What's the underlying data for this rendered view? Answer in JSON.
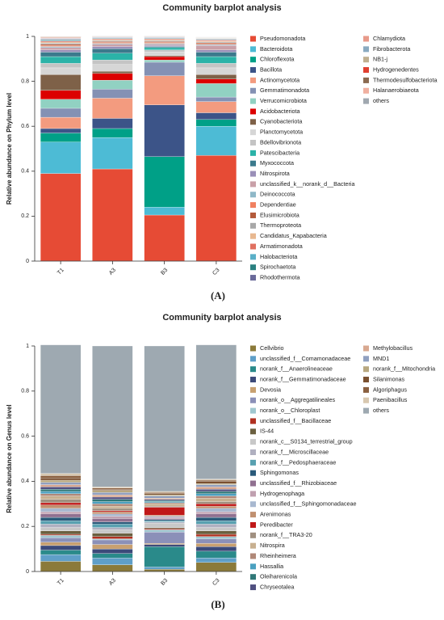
{
  "chart_data": [
    {
      "type": "bar",
      "stacked": true,
      "title": "Community barplot analysis",
      "y_label": "Relative abundance on Phylum level",
      "panel_label": "(A)",
      "categories": [
        "T1",
        "A3",
        "B3",
        "C3"
      ],
      "ylim": [
        0,
        1
      ],
      "yticks": [
        0,
        0.2,
        0.4,
        0.6,
        0.8,
        1
      ],
      "series": [
        {
          "name": "Pseudomonadota",
          "color": "#e64b35",
          "values": [
            0.39,
            0.41,
            0.205,
            0.47
          ]
        },
        {
          "name": "Bacteroidota",
          "color": "#4dbbd5",
          "values": [
            0.14,
            0.14,
            0.035,
            0.13
          ]
        },
        {
          "name": "Chloroflexota",
          "color": "#00a087",
          "values": [
            0.04,
            0.04,
            0.225,
            0.03
          ]
        },
        {
          "name": "Bacillota",
          "color": "#3c5488",
          "values": [
            0.02,
            0.045,
            0.23,
            0.03
          ]
        },
        {
          "name": "Actinomycetota",
          "color": "#f39b7f",
          "values": [
            0.05,
            0.09,
            0.13,
            0.05
          ]
        },
        {
          "name": "Gemmatimonadota",
          "color": "#8491b4",
          "values": [
            0.04,
            0.04,
            0.06,
            0.02
          ]
        },
        {
          "name": "Verrucomicrobiota",
          "color": "#91d1c2",
          "values": [
            0.04,
            0.04,
            0.01,
            0.06
          ]
        },
        {
          "name": "Acidobacteriota",
          "color": "#dc0000",
          "values": [
            0.04,
            0.03,
            0.015,
            0.02
          ]
        },
        {
          "name": "Cyanobacteriota",
          "color": "#7e6148",
          "values": [
            0.07,
            0.01,
            0.005,
            0.02
          ]
        },
        {
          "name": "Planctomycetota",
          "color": "#d6d6d6",
          "values": [
            0.03,
            0.03,
            0.015,
            0.03
          ]
        },
        {
          "name": "Bdellovibrionota",
          "color": "#c4c4c4",
          "values": [
            0.02,
            0.02,
            0.01,
            0.02
          ]
        },
        {
          "name": "Patescibacteria",
          "color": "#2bb3a8",
          "values": [
            0.03,
            0.03,
            0.01,
            0.03
          ]
        },
        {
          "name": "Myxococcota",
          "color": "#3b7a8c",
          "values": [
            0.02,
            0.02,
            0.005,
            0.02
          ]
        },
        {
          "name": "Nitrospirota",
          "color": "#9a8fb8",
          "values": [
            0.01,
            0.01,
            0.005,
            0.01
          ]
        },
        {
          "name": "unclassified_k__norank_d__Bacteria",
          "color": "#c9a0a8",
          "values": [
            0.01,
            0.01,
            0.005,
            0.02
          ]
        },
        {
          "name": "Deinococcota",
          "color": "#8fb8c8",
          "values": [
            0.005,
            0.004,
            0.004,
            0.004
          ]
        },
        {
          "name": "Dependentiae",
          "color": "#f08060",
          "values": [
            0.005,
            0.004,
            0.004,
            0.004
          ]
        },
        {
          "name": "Elusimicrobiota",
          "color": "#b35a3a",
          "values": [
            0.005,
            0.004,
            0.004,
            0.004
          ]
        },
        {
          "name": "Thermoproteota",
          "color": "#a8a8a8",
          "values": [
            0.005,
            0.004,
            0.004,
            0.004
          ]
        },
        {
          "name": "Candidatus_Kapabacteria",
          "color": "#e8b890",
          "values": [
            0.005,
            0.004,
            0.004,
            0.004
          ]
        },
        {
          "name": "Armatimonadota",
          "color": "#e07060",
          "values": [
            0.005,
            0.004,
            0.004,
            0.004
          ]
        },
        {
          "name": "Halobacteriota",
          "color": "#5ab0c8",
          "values": [
            0.003,
            0.002,
            0.002,
            0.002
          ]
        },
        {
          "name": "Spirochaetota",
          "color": "#2a8080",
          "values": [
            0.003,
            0.002,
            0.002,
            0.002
          ]
        },
        {
          "name": "Rhodothermota",
          "color": "#6a6a9a",
          "values": [
            0.003,
            0.002,
            0.002,
            0.002
          ]
        },
        {
          "name": "Chlamydiota",
          "color": "#e89a8a",
          "values": [
            0.002,
            0.001,
            0.001,
            0.001
          ]
        },
        {
          "name": "Fibrobacterota",
          "color": "#8aaac0",
          "values": [
            0.002,
            0.001,
            0.001,
            0.001
          ]
        },
        {
          "name": "NB1-j",
          "color": "#c0b090",
          "values": [
            0.002,
            0.001,
            0.001,
            0.001
          ]
        },
        {
          "name": "Hydrogenedentes",
          "color": "#e04030",
          "values": [
            0.002,
            0.001,
            0.001,
            0.001
          ]
        },
        {
          "name": "Thermodesulfobacteriota",
          "color": "#8b6a50",
          "values": [
            0.002,
            0.001,
            0.001,
            0.001
          ]
        },
        {
          "name": "Halanaerobiaeota",
          "color": "#f0b0a0",
          "values": [
            0.001,
            0.001,
            0.001,
            0.001
          ]
        },
        {
          "name": "others",
          "color": "#a0a8b0",
          "values": [
            0.001,
            0.001,
            0.001,
            0.001
          ]
        }
      ]
    },
    {
      "type": "bar",
      "stacked": true,
      "title": "Community barplot analysis",
      "y_label": "Relative abundance on Genus level",
      "panel_label": "(B)",
      "categories": [
        "T1",
        "A3",
        "B3",
        "C3"
      ],
      "ylim": [
        0,
        1
      ],
      "yticks": [
        0,
        0.2,
        0.4,
        0.6,
        0.8,
        1
      ],
      "series": [
        {
          "name": "Cellvibrio",
          "color": "#8b7a3a",
          "values": [
            0.045,
            0.03,
            0.01,
            0.04
          ]
        },
        {
          "name": "unclassified_f__Comamonadaceae",
          "color": "#5f9fc8",
          "values": [
            0.03,
            0.03,
            0.01,
            0.02
          ]
        },
        {
          "name": "norank_f__Anaerolineaceae",
          "color": "#2a8a8a",
          "values": [
            0.02,
            0.02,
            0.09,
            0.03
          ]
        },
        {
          "name": "norank_f__Gemmatimonadaceae",
          "color": "#3c4a7a",
          "values": [
            0.02,
            0.02,
            0.01,
            0.02
          ]
        },
        {
          "name": "Devosia",
          "color": "#c8a070",
          "values": [
            0.015,
            0.02,
            0.005,
            0.015
          ]
        },
        {
          "name": "norank_o__Aggregatilineales",
          "color": "#8b90b8",
          "values": [
            0.02,
            0.02,
            0.05,
            0.02
          ]
        },
        {
          "name": "norank_o__Chloroplast",
          "color": "#a0c8d0",
          "values": [
            0.01,
            0.005,
            0.01,
            0.01
          ]
        },
        {
          "name": "unclassified_f__Bacillaceae",
          "color": "#b03020",
          "values": [
            0.005,
            0.01,
            0.005,
            0.01
          ]
        },
        {
          "name": "IS-44",
          "color": "#6b6040",
          "values": [
            0.015,
            0.015,
            0.005,
            0.015
          ]
        },
        {
          "name": "norank_c__S0134_terrestrial_group",
          "color": "#c8c8c8",
          "values": [
            0.015,
            0.015,
            0.02,
            0.015
          ]
        },
        {
          "name": "norank_f__Microscillaceae",
          "color": "#b0b0c0",
          "values": [
            0.015,
            0.01,
            0.005,
            0.015
          ]
        },
        {
          "name": "norank_f__Pedosphaeraceae",
          "color": "#58a0b0",
          "values": [
            0.015,
            0.015,
            0.005,
            0.015
          ]
        },
        {
          "name": "Sphingomonas",
          "color": "#2a5a7a",
          "values": [
            0.015,
            0.01,
            0.005,
            0.015
          ]
        },
        {
          "name": "unclassified_f__Rhizobiaceae",
          "color": "#907090",
          "values": [
            0.015,
            0.015,
            0.005,
            0.015
          ]
        },
        {
          "name": "Hydrogenophaga",
          "color": "#c0a0b0",
          "values": [
            0.01,
            0.01,
            0.005,
            0.01
          ]
        },
        {
          "name": "unclassified_f__Sphingomonadaceae",
          "color": "#a8b8d0",
          "values": [
            0.015,
            0.01,
            0.005,
            0.015
          ]
        },
        {
          "name": "Arenimonas",
          "color": "#c09070",
          "values": [
            0.015,
            0.01,
            0.005,
            0.01
          ]
        },
        {
          "name": "Peredibacter",
          "color": "#c01818",
          "values": [
            0.01,
            0.005,
            0.035,
            0.01
          ]
        },
        {
          "name": "norank_f__TRA3-20",
          "color": "#a09080",
          "values": [
            0.015,
            0.01,
            0.005,
            0.01
          ]
        },
        {
          "name": "Nitrospira",
          "color": "#c8b090",
          "values": [
            0.015,
            0.01,
            0.01,
            0.015
          ]
        },
        {
          "name": "Rheinheimera",
          "color": "#b08878",
          "values": [
            0.01,
            0.01,
            0.005,
            0.01
          ]
        },
        {
          "name": "Hassallia",
          "color": "#4aa0c0",
          "values": [
            0.01,
            0.01,
            0.005,
            0.01
          ]
        },
        {
          "name": "Oleiharenicola",
          "color": "#307878",
          "values": [
            0.01,
            0.01,
            0.005,
            0.01
          ]
        },
        {
          "name": "Chryseotalea",
          "color": "#505080",
          "values": [
            0.01,
            0.01,
            0.005,
            0.01
          ]
        },
        {
          "name": "Methylobacillus",
          "color": "#d8a890",
          "values": [
            0.01,
            0.01,
            0.005,
            0.01
          ]
        },
        {
          "name": "MND1",
          "color": "#90a0c0",
          "values": [
            0.01,
            0.01,
            0.01,
            0.01
          ]
        },
        {
          "name": "norank_f__Mitochondria",
          "color": "#b8a880",
          "values": [
            0.01,
            0.01,
            0.005,
            0.005
          ]
        },
        {
          "name": "Silanimonas",
          "color": "#7a5030",
          "values": [
            0.01,
            0.005,
            0.005,
            0.01
          ]
        },
        {
          "name": "Algoriphagus",
          "color": "#8a6040",
          "values": [
            0.01,
            0.005,
            0.005,
            0.005
          ]
        },
        {
          "name": "Paenibacillus",
          "color": "#d8c8b0",
          "values": [
            0.01,
            0.005,
            0.005,
            0.005
          ]
        },
        {
          "name": "others",
          "color": "#9ea9b1",
          "values": [
            0.57,
            0.625,
            0.645,
            0.595
          ]
        }
      ]
    }
  ]
}
